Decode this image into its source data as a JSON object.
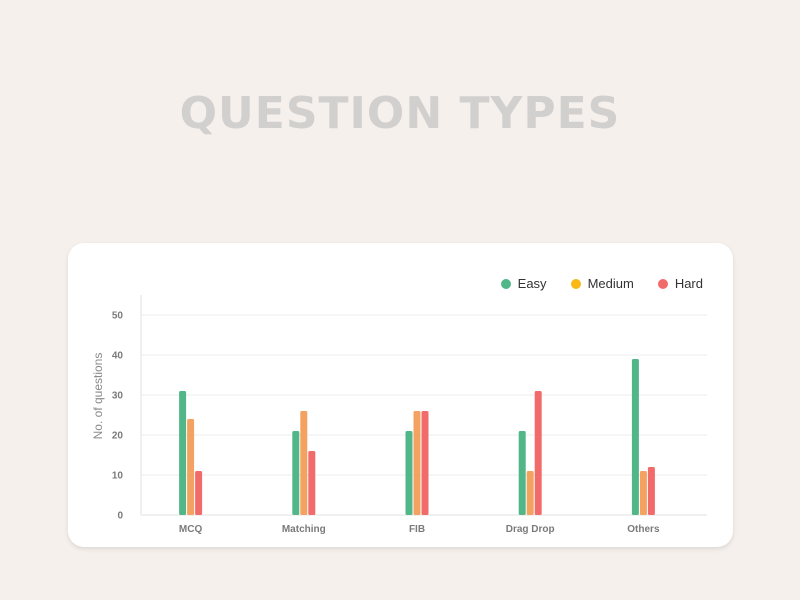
{
  "page": {
    "title": "QUESTION TYPES"
  },
  "chart_data": {
    "type": "bar",
    "title": "",
    "xlabel": "",
    "ylabel": "No. of questions",
    "ylim": [
      0,
      55
    ],
    "yticks": [
      0,
      10,
      20,
      30,
      40,
      50
    ],
    "grid": true,
    "legend_position": "top-right",
    "categories": [
      "MCQ",
      "Matching",
      "FIB",
      "Drag Drop",
      "Others"
    ],
    "series": [
      {
        "name": "Easy",
        "color": "#52b788",
        "values": [
          31,
          21,
          21,
          21,
          39
        ]
      },
      {
        "name": "Medium",
        "color": "#f4a261",
        "values": [
          24,
          26,
          26,
          11,
          11
        ]
      },
      {
        "name": "Hard",
        "color": "#f26b6b",
        "values": [
          11,
          16,
          26,
          31,
          12
        ]
      }
    ],
    "legend_dot_colors": [
      "#52b788",
      "#f9b815",
      "#f26b6b"
    ]
  }
}
